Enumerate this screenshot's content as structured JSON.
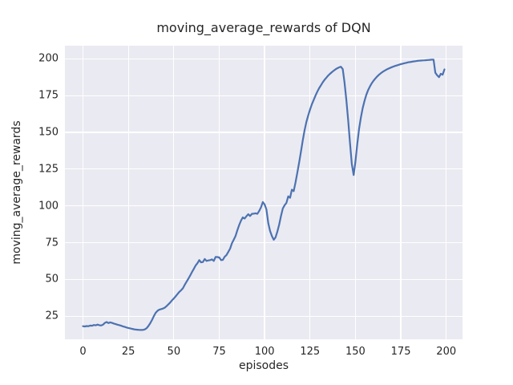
{
  "chart_data": {
    "type": "line",
    "title": "moving_average_rewards of DQN",
    "xlabel": "episodes",
    "ylabel": "moving_average_rewards",
    "x_ticks": [
      0,
      25,
      50,
      75,
      100,
      125,
      150,
      175,
      200
    ],
    "y_ticks": [
      25,
      50,
      75,
      100,
      125,
      150,
      175,
      200
    ],
    "xlim": [
      -9.95,
      208.95
    ],
    "ylim": [
      9.3,
      208.9
    ],
    "grid": true,
    "legend": "none",
    "panel_background": "#eaeaf2",
    "grid_color": "#ffffff",
    "text_color": "#262626",
    "line_color": "#4c72b0",
    "series": [
      {
        "name": "DQN",
        "x_start": 0,
        "x_step": 1,
        "values": [
          18.2,
          18.0,
          18.3,
          18.2,
          18.6,
          18.5,
          19.0,
          18.8,
          19.3,
          18.9,
          18.7,
          19.2,
          20.4,
          21.0,
          20.3,
          20.8,
          20.4,
          20.0,
          19.6,
          19.2,
          18.9,
          18.5,
          18.1,
          17.7,
          17.3,
          17.0,
          16.7,
          16.4,
          16.1,
          15.9,
          15.8,
          15.7,
          15.6,
          15.7,
          16.0,
          16.8,
          18.3,
          20.2,
          22.4,
          25.0,
          27.3,
          28.6,
          29.4,
          29.8,
          30.2,
          30.8,
          31.8,
          33.0,
          34.3,
          35.8,
          37.0,
          38.5,
          40.0,
          41.5,
          42.6,
          44.0,
          46.3,
          48.4,
          50.5,
          52.6,
          55.0,
          57.2,
          59.4,
          61.0,
          63.1,
          61.6,
          61.8,
          63.9,
          62.6,
          62.9,
          63.1,
          63.6,
          62.6,
          65.3,
          65.2,
          64.9,
          63.1,
          63.3,
          65.4,
          66.5,
          68.7,
          71.0,
          74.5,
          77.0,
          79.6,
          83.4,
          87.0,
          90.0,
          92.2,
          91.4,
          93.0,
          94.3,
          93.1,
          94.6,
          94.7,
          95.0,
          94.6,
          96.5,
          99.0,
          102.6,
          101.0,
          97.5,
          88.2,
          83.0,
          79.5,
          77.0,
          78.5,
          82.5,
          87.3,
          93.0,
          98.2,
          100.5,
          102.0,
          106.5,
          105.5,
          111.0,
          110.0,
          116.0,
          122.5,
          129.5,
          137.0,
          144.5,
          151.5,
          157.0,
          161.5,
          165.5,
          169.0,
          172.0,
          175.0,
          177.6,
          180.0,
          182.0,
          184.0,
          185.7,
          187.2,
          188.6,
          189.8,
          190.9,
          191.9,
          192.8,
          193.6,
          194.2,
          194.6,
          193.0,
          184.0,
          172.0,
          158.0,
          143.0,
          128.5,
          121.0,
          130.0,
          142.0,
          152.5,
          160.0,
          166.5,
          171.5,
          175.5,
          178.8,
          181.3,
          183.4,
          185.2,
          186.7,
          188.0,
          189.2,
          190.2,
          191.1,
          191.9,
          192.6,
          193.2,
          193.8,
          194.3,
          194.8,
          195.2,
          195.6,
          196.0,
          196.4,
          196.7,
          197.0,
          197.3,
          197.6,
          197.8,
          198.0,
          198.2,
          198.4,
          198.6,
          198.7,
          198.8,
          198.9,
          199.0,
          199.1,
          199.2,
          199.3,
          199.4,
          199.4,
          190.5,
          188.8,
          187.5,
          189.8,
          189.2,
          192.8
        ]
      }
    ]
  }
}
